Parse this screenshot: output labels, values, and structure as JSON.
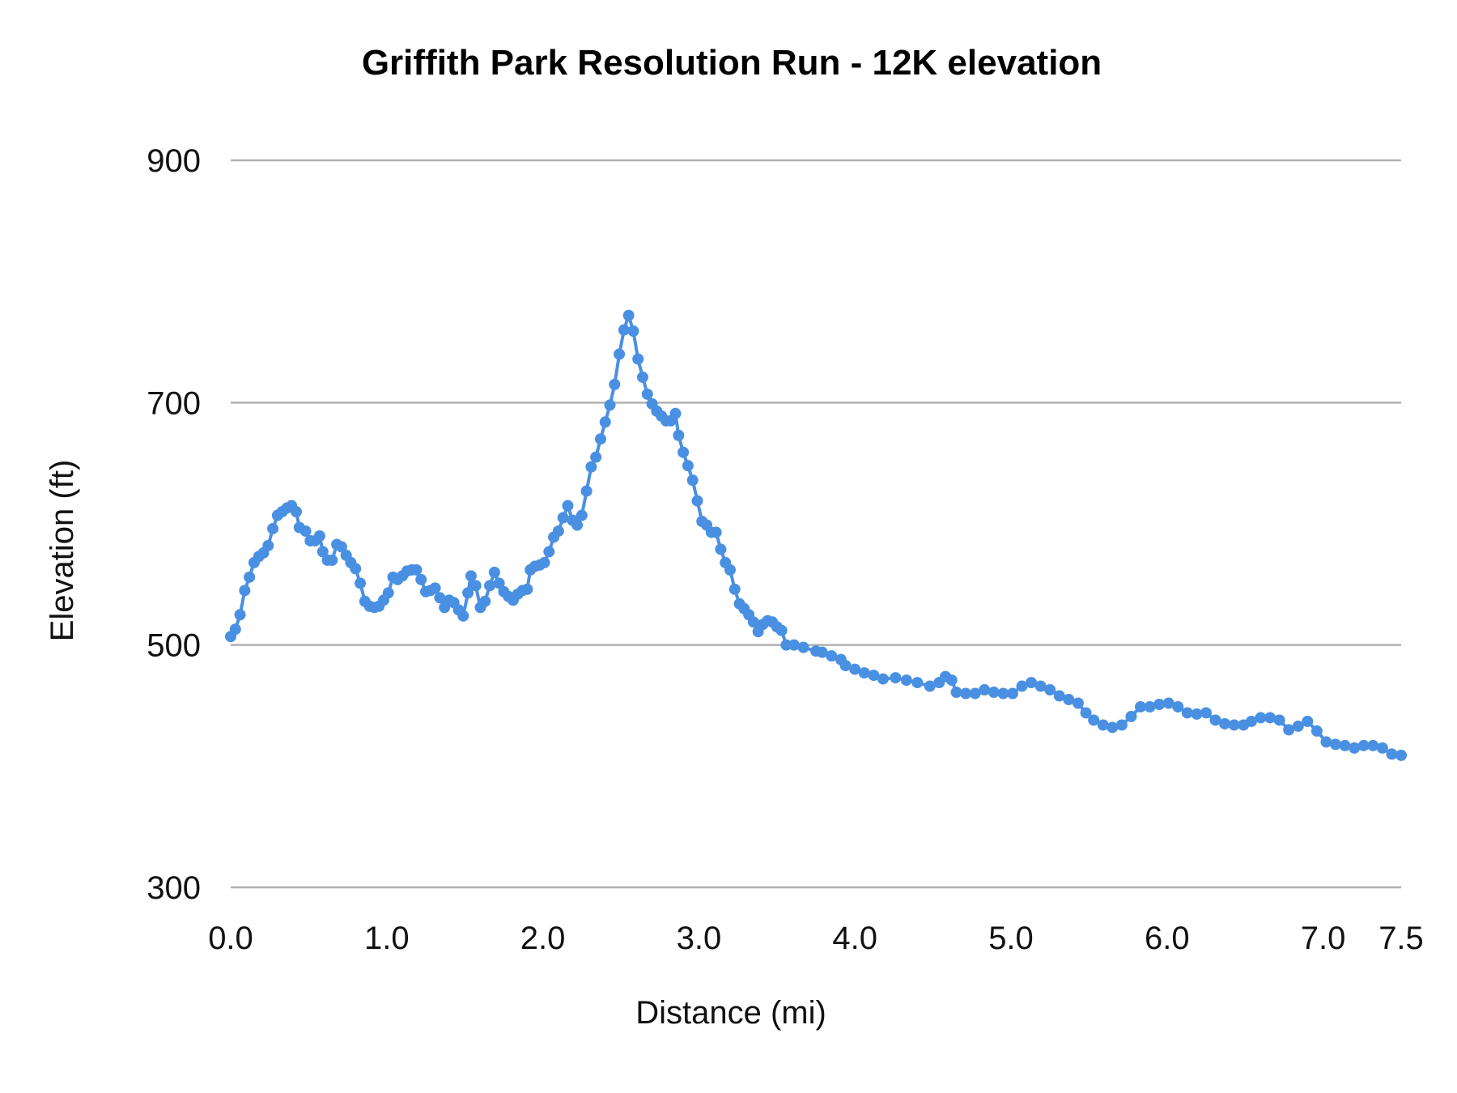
{
  "chart_data": {
    "type": "line",
    "title": "Griffith Park Resolution Run - 12K elevation",
    "xlabel": "Distance (mi)",
    "ylabel": "Elevation (ft)",
    "xlim": [
      0,
      7.5
    ],
    "ylim": [
      300,
      900
    ],
    "xticks": [
      "0.0",
      "1.0",
      "2.0",
      "3.0",
      "4.0",
      "5.0",
      "6.0",
      "7.0",
      "7.5"
    ],
    "yticks": [
      "300",
      "500",
      "700",
      "900"
    ],
    "grid": "horizontal",
    "legend": "none",
    "markers": true,
    "color": "#4a90e2",
    "series": [
      {
        "x": [
          0.0,
          0.03,
          0.06,
          0.09,
          0.12,
          0.15,
          0.18,
          0.21,
          0.24,
          0.27,
          0.3,
          0.33,
          0.36,
          0.39,
          0.42,
          0.44,
          0.48,
          0.51,
          0.54,
          0.57,
          0.59,
          0.62,
          0.65,
          0.68,
          0.71,
          0.74,
          0.77,
          0.8,
          0.83,
          0.86,
          0.89,
          0.92,
          0.95,
          0.98,
          1.01,
          1.04,
          1.07,
          1.1,
          1.13,
          1.16,
          1.19,
          1.22,
          1.25,
          1.28,
          1.31,
          1.34,
          1.37,
          1.4,
          1.43,
          1.46,
          1.49,
          1.52,
          1.54,
          1.57,
          1.6,
          1.63,
          1.66,
          1.69,
          1.72,
          1.75,
          1.78,
          1.81,
          1.84,
          1.87,
          1.9,
          1.92,
          1.95,
          1.98,
          2.01,
          2.04,
          2.07,
          2.1,
          2.13,
          2.16,
          2.19,
          2.22,
          2.25,
          2.28,
          2.31,
          2.34,
          2.37,
          2.4,
          2.43,
          2.46,
          2.49,
          2.52,
          2.55,
          2.58,
          2.61,
          2.64,
          2.67,
          2.7,
          2.73,
          2.76,
          2.79,
          2.82,
          2.85,
          2.87,
          2.9,
          2.93,
          2.96,
          2.99,
          3.02,
          3.05,
          3.08,
          3.11,
          3.14,
          3.17,
          3.2,
          3.23,
          3.26,
          3.29,
          3.32,
          3.35,
          3.38,
          3.41,
          3.44,
          3.47,
          3.5,
          3.53,
          3.56,
          3.61,
          3.67,
          3.75,
          3.79,
          3.85,
          3.91,
          3.94,
          4.0,
          4.06,
          4.12,
          4.18,
          4.26,
          4.33,
          4.4,
          4.48,
          4.54,
          4.58,
          4.62,
          4.65,
          4.71,
          4.77,
          4.83,
          4.89,
          4.95,
          5.01,
          5.07,
          5.13,
          5.19,
          5.25,
          5.31,
          5.37,
          5.43,
          5.48,
          5.53,
          5.59,
          5.65,
          5.71,
          5.77,
          5.83,
          5.89,
          5.95,
          6.01,
          6.07,
          6.13,
          6.19,
          6.25,
          6.31,
          6.37,
          6.43,
          6.49,
          6.54,
          6.6,
          6.66,
          6.72,
          6.78,
          6.84,
          6.9,
          6.96,
          7.02,
          7.08,
          7.14,
          7.2,
          7.26,
          7.32,
          7.38,
          7.44,
          7.5
        ],
        "y": [
          507,
          513,
          525,
          545,
          556,
          568,
          573,
          576,
          582,
          596,
          607,
          610,
          613,
          615,
          610,
          597,
          594,
          586,
          586,
          590,
          577,
          570,
          570,
          583,
          581,
          574,
          568,
          563,
          551,
          536,
          532,
          531,
          532,
          537,
          543,
          556,
          554,
          557,
          561,
          562,
          562,
          554,
          544,
          545,
          547,
          539,
          531,
          537,
          535,
          529,
          524,
          543,
          557,
          549,
          531,
          536,
          549,
          560,
          551,
          544,
          540,
          537,
          542,
          545,
          546,
          562,
          565,
          566,
          568,
          577,
          589,
          594,
          605,
          615,
          603,
          599,
          607,
          627,
          647,
          655,
          670,
          684,
          698,
          715,
          740,
          760,
          772,
          759,
          736,
          721,
          707,
          699,
          693,
          689,
          685,
          685,
          691,
          673,
          659,
          648,
          636,
          619,
          602,
          599,
          593,
          593,
          579,
          568,
          562,
          546,
          534,
          530,
          525,
          519,
          511,
          517,
          520,
          519,
          515,
          512,
          500,
          500,
          498,
          495,
          494,
          491,
          488,
          483,
          480,
          477,
          475,
          472,
          473,
          471,
          469,
          466,
          469,
          474,
          471,
          461,
          460,
          460,
          463,
          461,
          460,
          460,
          466,
          469,
          466,
          463,
          458,
          455,
          452,
          444,
          438,
          434,
          432,
          434,
          441,
          449,
          449,
          451,
          452,
          449,
          444,
          443,
          444,
          438,
          435,
          434,
          434,
          437,
          440,
          440,
          438,
          430,
          433,
          437,
          429,
          420,
          418,
          417,
          415,
          417,
          417,
          415,
          410,
          409
        ]
      }
    ]
  }
}
